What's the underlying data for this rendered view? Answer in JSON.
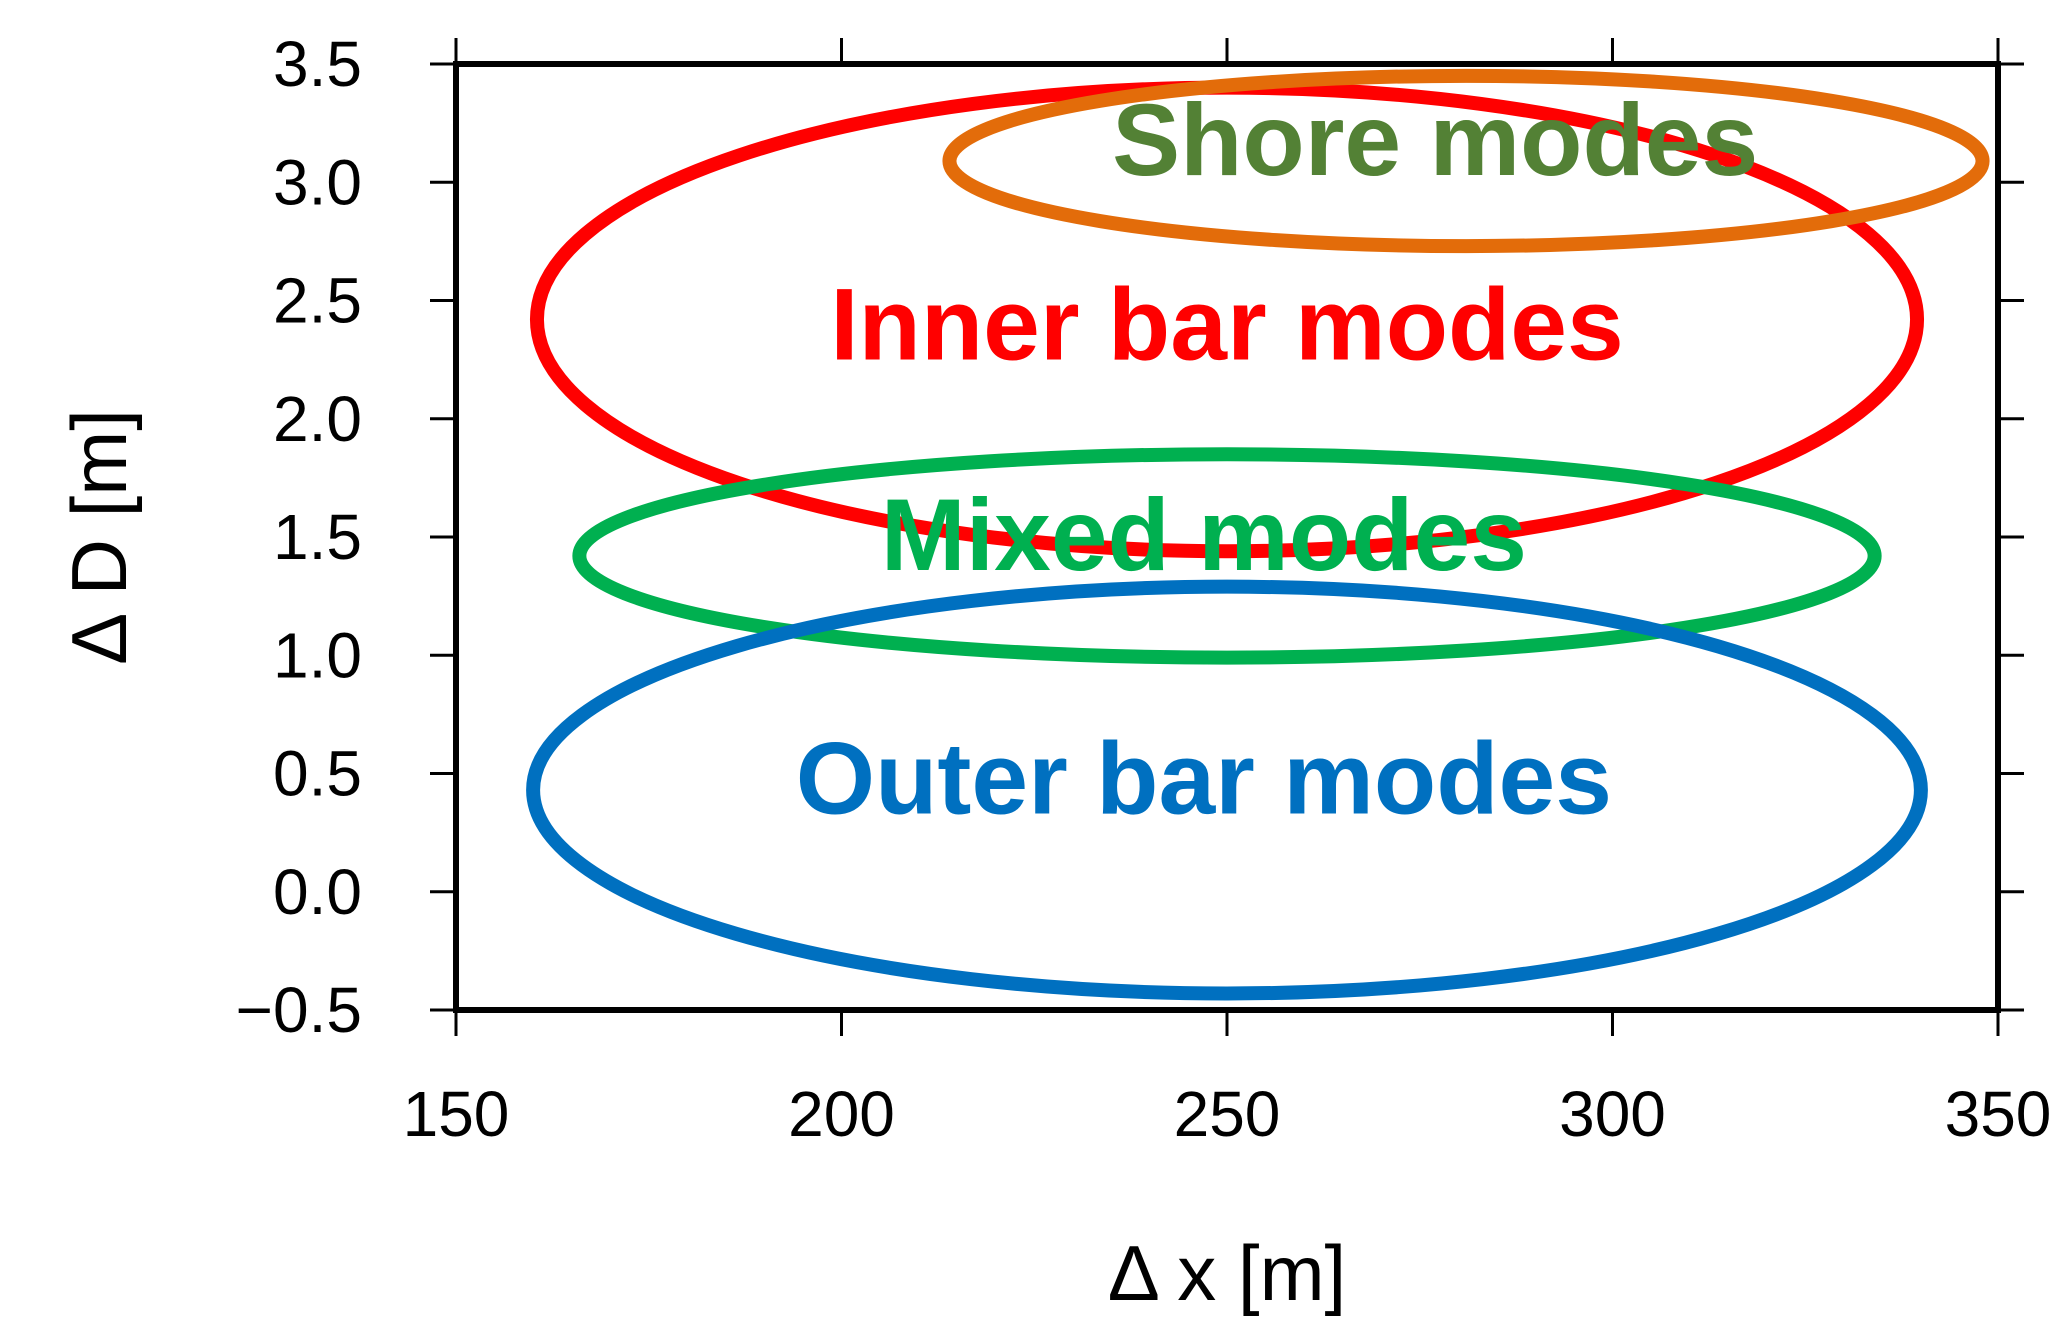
{
  "chart_data": {
    "type": "scatter",
    "title": "",
    "xlabel": "Δ x [m]",
    "ylabel": "Δ D [m]",
    "xlim": [
      150,
      350
    ],
    "ylim": [
      -0.5,
      3.5
    ],
    "x_ticks": [
      150,
      200,
      250,
      300,
      350
    ],
    "x_tick_labels": [
      "150",
      "200",
      "250",
      "300",
      "350"
    ],
    "y_ticks": [
      -0.5,
      0.0,
      0.5,
      1.0,
      1.5,
      2.0,
      2.5,
      3.0,
      3.5
    ],
    "y_tick_labels": [
      "−0.5",
      "0.0",
      "0.5",
      "1.0",
      "1.5",
      "2.0",
      "2.5",
      "3.0",
      "3.5"
    ],
    "grid": false,
    "regions": [
      {
        "label": "Inner bar modes",
        "color": "#ff0000",
        "text_color": "#ff0000",
        "center": [
          250,
          2.42
        ],
        "radii": [
          89.5,
          0.98
        ],
        "label_at": [
          250,
          2.25
        ]
      },
      {
        "label": "Shore modes",
        "color": "#e36c0a",
        "text_color": "#538135",
        "center": [
          281,
          3.09
        ],
        "radii": [
          67,
          0.36
        ],
        "label_at": [
          277,
          3.03
        ]
      },
      {
        "label": "Mixed modes",
        "color": "#00b050",
        "text_color": "#00b050",
        "center": [
          250,
          1.42
        ],
        "radii": [
          84,
          0.43
        ],
        "label_at": [
          247,
          1.36
        ]
      },
      {
        "label": "Outer bar modes",
        "color": "#0070c0",
        "text_color": "#0070c0",
        "center": [
          250,
          0.43
        ],
        "radii": [
          90,
          0.86
        ],
        "label_at": [
          247,
          0.33
        ]
      }
    ]
  }
}
